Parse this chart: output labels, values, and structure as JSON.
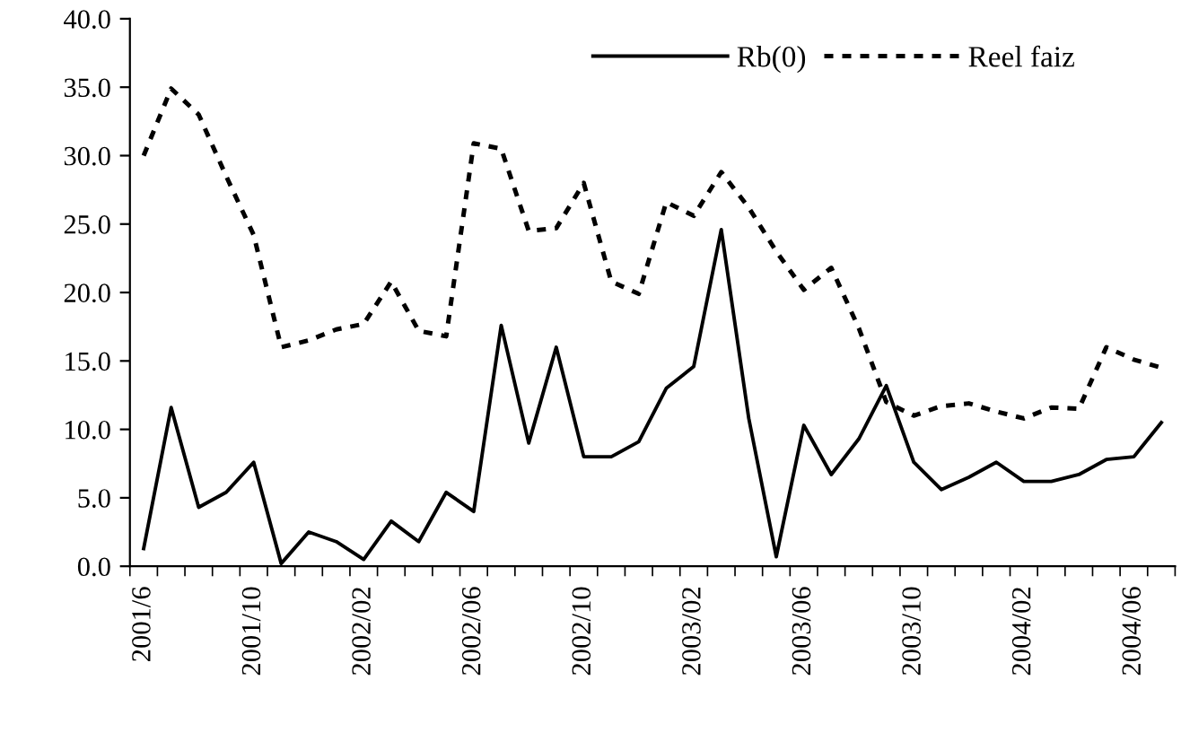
{
  "chart_data": {
    "type": "line",
    "categories": [
      "2001/6",
      null,
      null,
      null,
      "2001/10",
      null,
      null,
      null,
      "2002/02",
      null,
      null,
      null,
      "2002/06",
      null,
      null,
      null,
      "2002/10",
      null,
      null,
      null,
      "2003/02",
      null,
      null,
      null,
      "2003/06",
      null,
      null,
      null,
      "2003/10",
      null,
      null,
      null,
      "2004/02",
      null,
      null,
      null,
      "2004/06",
      null
    ],
    "series": [
      {
        "name": "Rb(0)",
        "color": "#000000",
        "line_style": "solid",
        "values": [
          1.3,
          11.6,
          4.3,
          5.4,
          7.6,
          0.2,
          2.5,
          1.8,
          0.5,
          3.3,
          1.8,
          5.4,
          4.0,
          17.6,
          9.0,
          16.0,
          8.0,
          8.0,
          9.1,
          13.0,
          14.6,
          24.6,
          10.8,
          0.7,
          10.3,
          6.7,
          9.3,
          13.2,
          7.6,
          5.6,
          6.5,
          7.6,
          6.2,
          6.2,
          6.7,
          7.8,
          8.0,
          10.5
        ]
      },
      {
        "name": "Reel faiz",
        "color": "#000000",
        "line_style": "dotted",
        "values": [
          30.0,
          34.9,
          33.0,
          28.5,
          24.2,
          16.0,
          16.5,
          17.3,
          17.7,
          20.8,
          17.2,
          16.8,
          30.9,
          30.5,
          24.5,
          24.7,
          28.0,
          20.8,
          19.9,
          26.6,
          25.6,
          28.8,
          26.2,
          23.0,
          20.2,
          21.8,
          17.4,
          12.0,
          11.0,
          11.7,
          11.9,
          11.3,
          10.8,
          11.6,
          11.5,
          16.0,
          15.1,
          14.5
        ]
      }
    ],
    "ylim": [
      0,
      40
    ],
    "yticks": [
      {
        "value": 0,
        "label": "0.0"
      },
      {
        "value": 5,
        "label": "5.0"
      },
      {
        "value": 10,
        "label": "10.0"
      },
      {
        "value": 15,
        "label": "15.0"
      },
      {
        "value": 20,
        "label": "20.0"
      },
      {
        "value": 25,
        "label": "25.0"
      },
      {
        "value": 30,
        "label": "30.0"
      },
      {
        "value": 35,
        "label": "35.0"
      },
      {
        "value": 40,
        "label": "40.0"
      }
    ],
    "grid": false,
    "legend": "top right",
    "marker": "none"
  }
}
